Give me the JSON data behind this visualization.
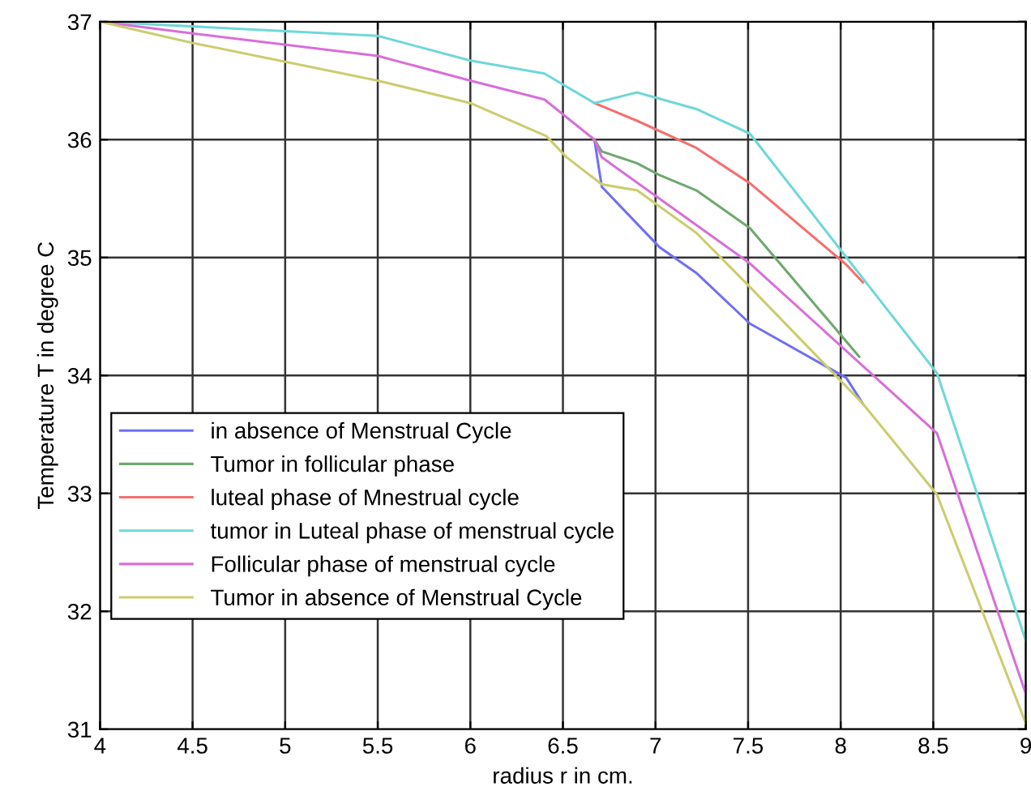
{
  "chart_data": {
    "type": "line",
    "xlabel": "radius r in cm.",
    "ylabel": "Temperature T in degree C",
    "xlim": [
      4,
      9
    ],
    "ylim": [
      31,
      37
    ],
    "xticks": [
      4,
      4.5,
      5,
      5.5,
      6,
      6.5,
      7,
      7.5,
      8,
      8.5,
      9
    ],
    "yticks": [
      31,
      32,
      33,
      34,
      35,
      36,
      37
    ],
    "grid": true,
    "legend": "bottom left",
    "line_style": "solid",
    "series": [
      {
        "name": "in absence of Menstrual Cycle",
        "color": "#6f6ff5",
        "x": [
          6.67,
          6.71,
          7.02,
          7.22,
          7.51,
          8.03,
          8.12
        ],
        "values": [
          36.0,
          35.6,
          35.09,
          34.87,
          34.44,
          33.98,
          33.76
        ]
      },
      {
        "name": "Tumor in follicular phase",
        "color": "#6fa86f",
        "x": [
          6.67,
          6.71,
          6.9,
          7.02,
          7.22,
          7.51,
          8.1
        ],
        "values": [
          36.0,
          35.9,
          35.8,
          35.7,
          35.57,
          35.25,
          34.16
        ]
      },
      {
        "name": "luteal phase of Mnestrual cycle",
        "color": "#f56f6f",
        "x": [
          6.67,
          6.9,
          7.22,
          7.51,
          8.03,
          8.12
        ],
        "values": [
          36.31,
          36.16,
          35.93,
          35.63,
          34.94,
          34.79
        ]
      },
      {
        "name": "tumor in Luteal phase of menstrual cycle",
        "color": "#6fd8d8",
        "x": [
          4,
          4.5,
          5.5,
          6,
          6.4,
          6.67,
          6.9,
          7.22,
          7.51,
          8.52,
          9
        ],
        "values": [
          37,
          36.96,
          36.88,
          36.67,
          36.56,
          36.31,
          36.4,
          36.26,
          36.05,
          34.02,
          31.75
        ]
      },
      {
        "name": "Follicular phase of menstrual cycle",
        "color": "#d86fd8",
        "x": [
          4,
          4.5,
          5.5,
          6,
          6.4,
          6.67,
          6.71,
          7.51,
          8.52,
          9
        ],
        "values": [
          37,
          36.9,
          36.71,
          36.5,
          36.34,
          36.0,
          35.85,
          34.95,
          33.51,
          31.3
        ]
      },
      {
        "name": "Tumor in absence of Menstrual Cycle",
        "color": "#cccc6f",
        "x": [
          4,
          4.5,
          5.5,
          6,
          6.41,
          6.52,
          6.71,
          6.9,
          7.22,
          7.51,
          8.12,
          8.52,
          9
        ],
        "values": [
          37,
          36.82,
          36.5,
          36.31,
          36.03,
          35.85,
          35.62,
          35.57,
          35.21,
          34.75,
          33.76,
          32.99,
          31.05
        ]
      }
    ]
  }
}
